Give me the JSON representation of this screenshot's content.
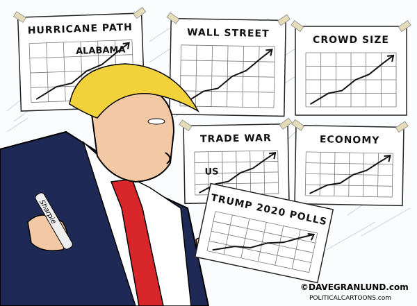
{
  "panels": [
    {
      "title": "HURRICANE PATH",
      "label": "ALABAMA"
    },
    {
      "title": "WALL STREET"
    },
    {
      "title": "CROWD SIZE"
    },
    {
      "title": "TRADE WAR",
      "label": "US"
    },
    {
      "title": "ECONOMY"
    },
    {
      "title": "TRUMP 2020 POLLS"
    }
  ],
  "marker": "Sharpie",
  "credit": {
    "line1": "©DAVEGRANLUND.com",
    "line2": "POLITICALCARTOONS.com"
  }
}
